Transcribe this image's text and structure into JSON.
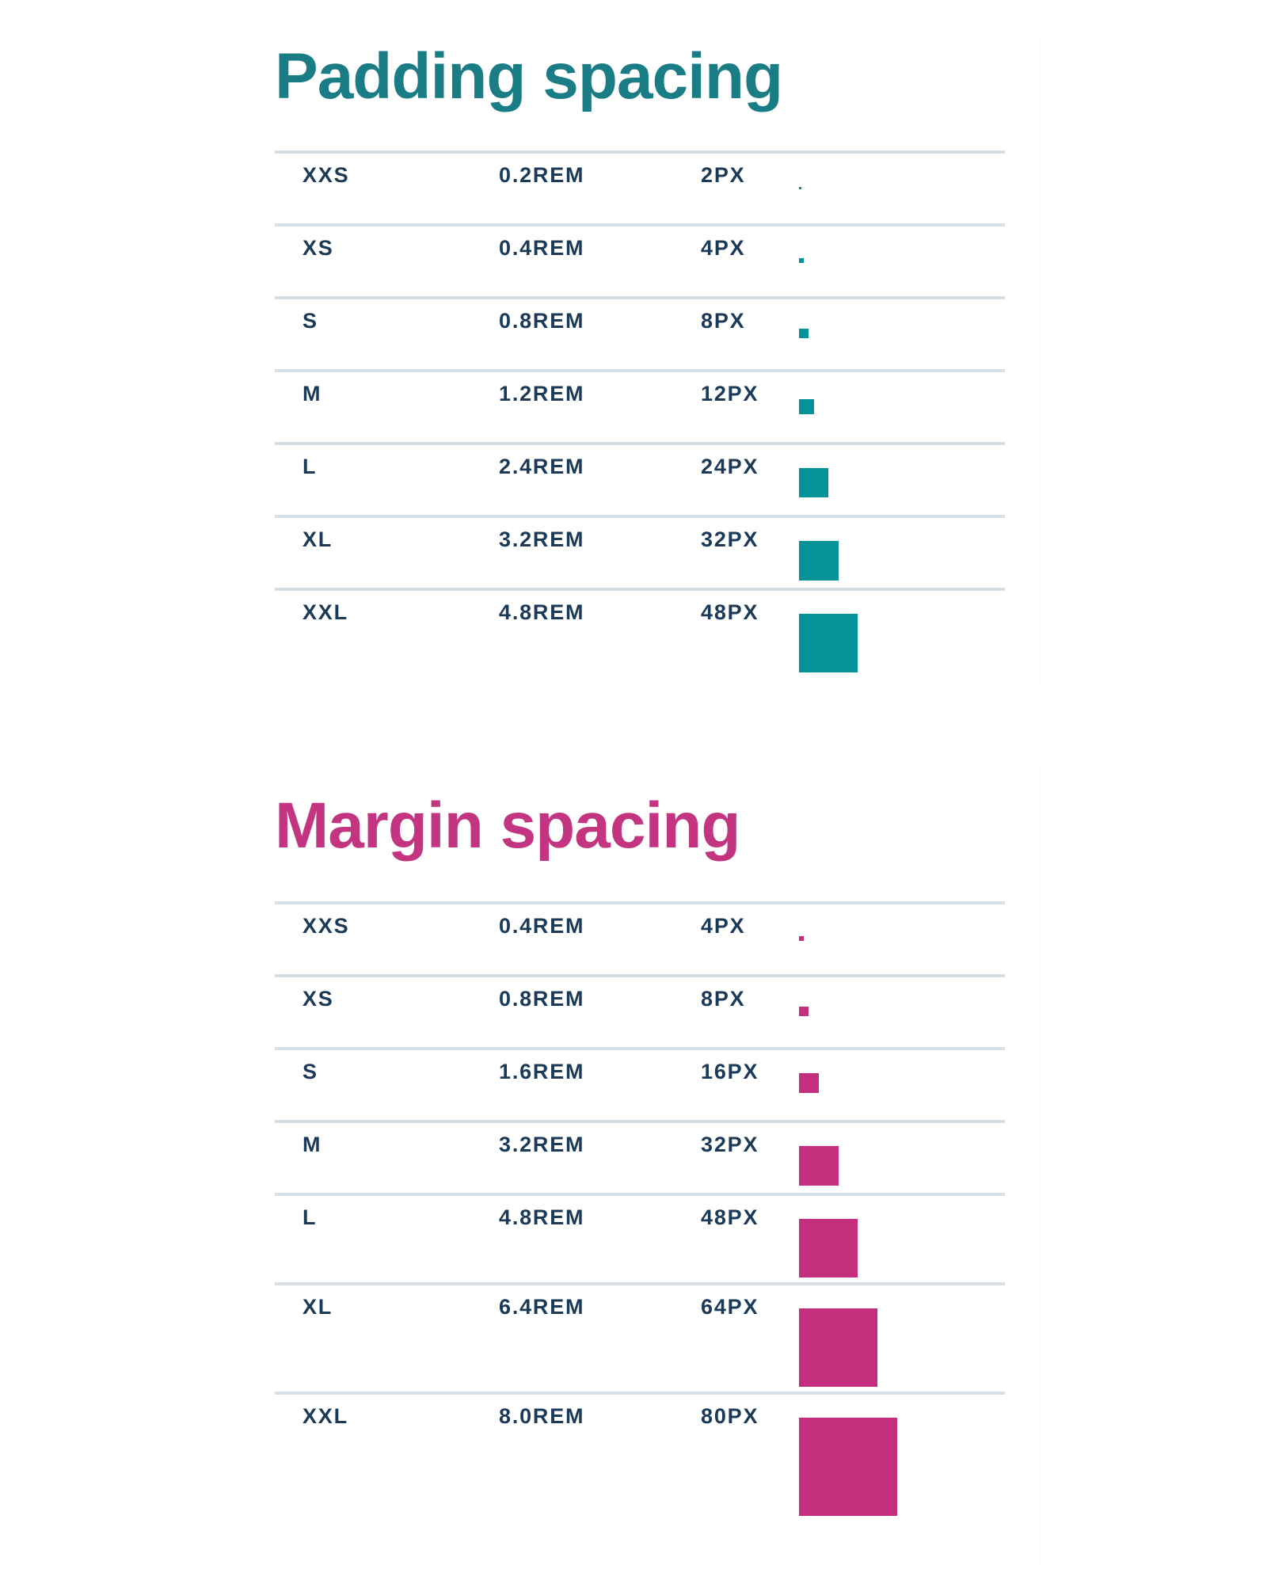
{
  "sections": [
    {
      "id": "padding",
      "title": "Padding spacing",
      "color": "#1a7d86",
      "swatch_color": "#05939a",
      "rows": [
        {
          "name": "XXS",
          "rem": "0.2REM",
          "px": "2PX",
          "size": 2
        },
        {
          "name": "XS",
          "rem": "0.4REM",
          "px": "4PX",
          "size": 4
        },
        {
          "name": "S",
          "rem": "0.8REM",
          "px": "8PX",
          "size": 8
        },
        {
          "name": "M",
          "rem": "1.2REM",
          "px": "12PX",
          "size": 12
        },
        {
          "name": "L",
          "rem": "2.4REM",
          "px": "24PX",
          "size": 24
        },
        {
          "name": "XL",
          "rem": "3.2REM",
          "px": "32PX",
          "size": 32
        },
        {
          "name": "XXL",
          "rem": "4.8REM",
          "px": "48PX",
          "size": 48
        }
      ]
    },
    {
      "id": "margin",
      "title": "Margin spacing",
      "color": "#c33580",
      "swatch_color": "#c52e7d",
      "rows": [
        {
          "name": "XXS",
          "rem": "0.4REM",
          "px": "4PX",
          "size": 4
        },
        {
          "name": "XS",
          "rem": "0.8REM",
          "px": "8PX",
          "size": 8
        },
        {
          "name": "S",
          "rem": "1.6REM",
          "px": "16PX",
          "size": 16
        },
        {
          "name": "M",
          "rem": "3.2REM",
          "px": "32PX",
          "size": 32
        },
        {
          "name": "L",
          "rem": "4.8REM",
          "px": "48PX",
          "size": 48
        },
        {
          "name": "XL",
          "rem": "6.4REM",
          "px": "64PX",
          "size": 64
        },
        {
          "name": "XXL",
          "rem": "8.0REM",
          "px": "80PX",
          "size": 80
        }
      ]
    }
  ]
}
